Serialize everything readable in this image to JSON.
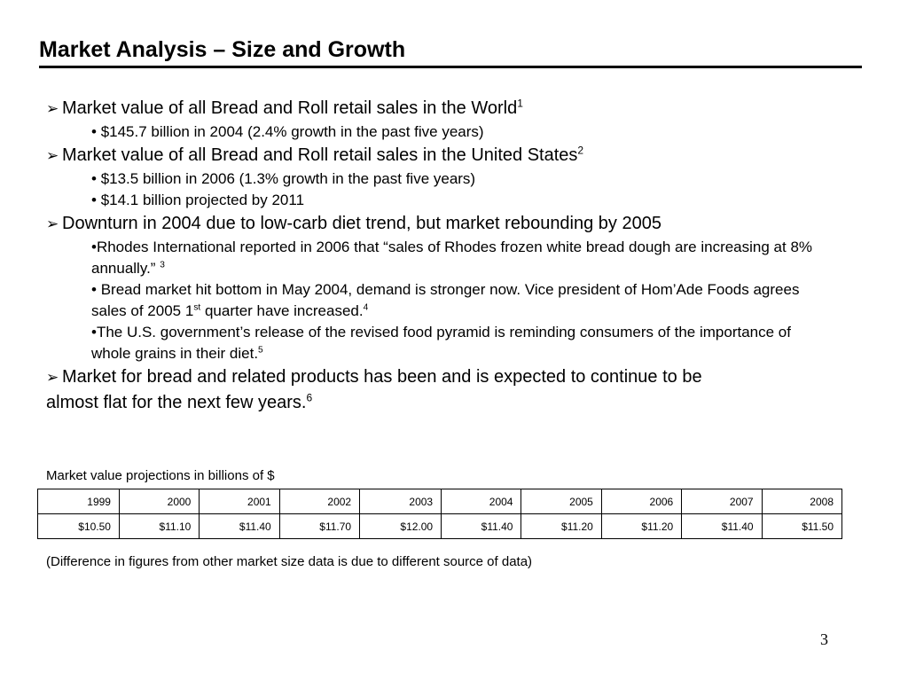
{
  "slide": {
    "title": "Market Analysis – Size and Growth",
    "page_number": "3"
  },
  "bullets": {
    "arrow_glyph": "➢",
    "dot_glyph": "•",
    "b1": {
      "text": "Market value of all Bread and Roll retail sales in the World",
      "ref": "1",
      "sub1": "$145.7 billion in 2004 (2.4% growth in the past five years)"
    },
    "b2": {
      "text": "Market value of all Bread and Roll retail sales in the United States",
      "ref": "2",
      "sub1": "$13.5 billion in 2006 (1.3% growth in the past five years)",
      "sub2": "$14.1 billion projected by 2011"
    },
    "b3": {
      "text": "Downturn in 2004 due to low-carb diet trend, but market rebounding by 2005",
      "sub1_text": "Rhodes International reported in 2006 that “sales of Rhodes frozen white bread dough are increasing at 8% annually.” ",
      "sub1_ref": "3",
      "sub2_text_a": "Bread market hit bottom in May 2004, demand is stronger now.  Vice president of Hom’Ade Foods agrees sales of 2005 1",
      "sub2_ordinal": "st",
      "sub2_text_b": " quarter have increased.",
      "sub2_ref": "4",
      "sub3_text": "The U.S. government’s release of the revised food pyramid is reminding consumers of the importance of whole grains in their diet.",
      "sub3_ref": "5"
    },
    "b4": {
      "line1": "Market for bread and related products has been and is expected to continue to be",
      "line2": "almost flat for the next few years.",
      "ref": "6"
    }
  },
  "table": {
    "caption": "Market value projections in billions of $",
    "years": [
      "1999",
      "2000",
      "2001",
      "2002",
      "2003",
      "2004",
      "2005",
      "2006",
      "2007",
      "2008"
    ],
    "values": [
      "$10.50",
      "$11.10",
      "$11.40",
      "$11.70",
      "$12.00",
      "$11.40",
      "$11.20",
      "$11.20",
      "$11.40",
      "$11.50"
    ],
    "note": "(Difference in figures from other market size data is due to different source of data)"
  }
}
